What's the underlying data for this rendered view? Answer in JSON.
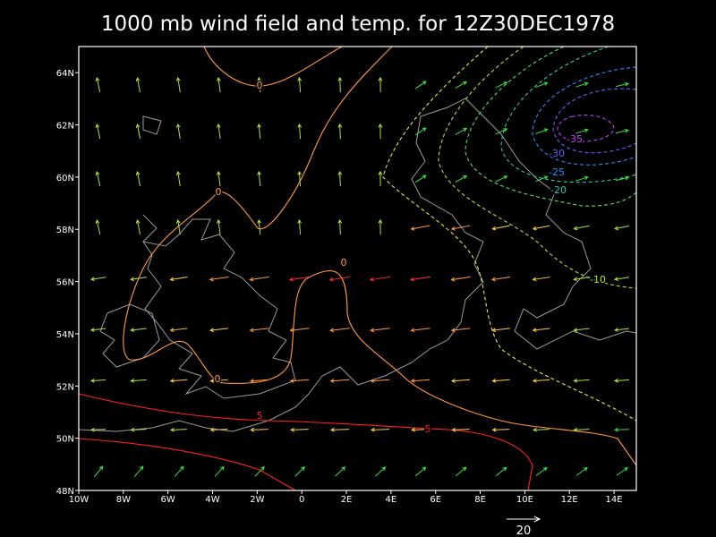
{
  "title": "1000 mb wind field and temp. for 12Z30DEC1978",
  "map": {
    "xlim": [
      -10,
      15
    ],
    "ylim": [
      48,
      65
    ],
    "xticks": [
      {
        "value": -10,
        "label": "10W"
      },
      {
        "value": -8,
        "label": "8W"
      },
      {
        "value": -6,
        "label": "6W"
      },
      {
        "value": -4,
        "label": "4W"
      },
      {
        "value": -2,
        "label": "2W"
      },
      0,
      {
        "value": 2,
        "label": "2E"
      },
      {
        "value": 4,
        "label": "4E"
      },
      {
        "value": 6,
        "label": "6E"
      },
      {
        "value": 8,
        "label": "8E"
      },
      {
        "value": 10,
        "label": "10E"
      },
      {
        "value": 12,
        "label": "12E"
      },
      {
        "value": 14,
        "label": "14E"
      }
    ],
    "yticks": [
      {
        "value": 48,
        "label": "48N"
      },
      {
        "value": 50,
        "label": "50N"
      },
      {
        "value": 52,
        "label": "52N"
      },
      {
        "value": 54,
        "label": "54N"
      },
      {
        "value": 56,
        "label": "56N"
      },
      {
        "value": 58,
        "label": "58N"
      },
      {
        "value": 60,
        "label": "60N"
      },
      {
        "value": 62,
        "label": "62N"
      },
      {
        "value": 64,
        "label": "64N"
      }
    ],
    "contour_labels": [
      "0",
      "0",
      "0",
      "0",
      "5",
      "5",
      "-10",
      "-20",
      "-25",
      "-30",
      "-35"
    ],
    "reference_vector_label": "20"
  }
}
